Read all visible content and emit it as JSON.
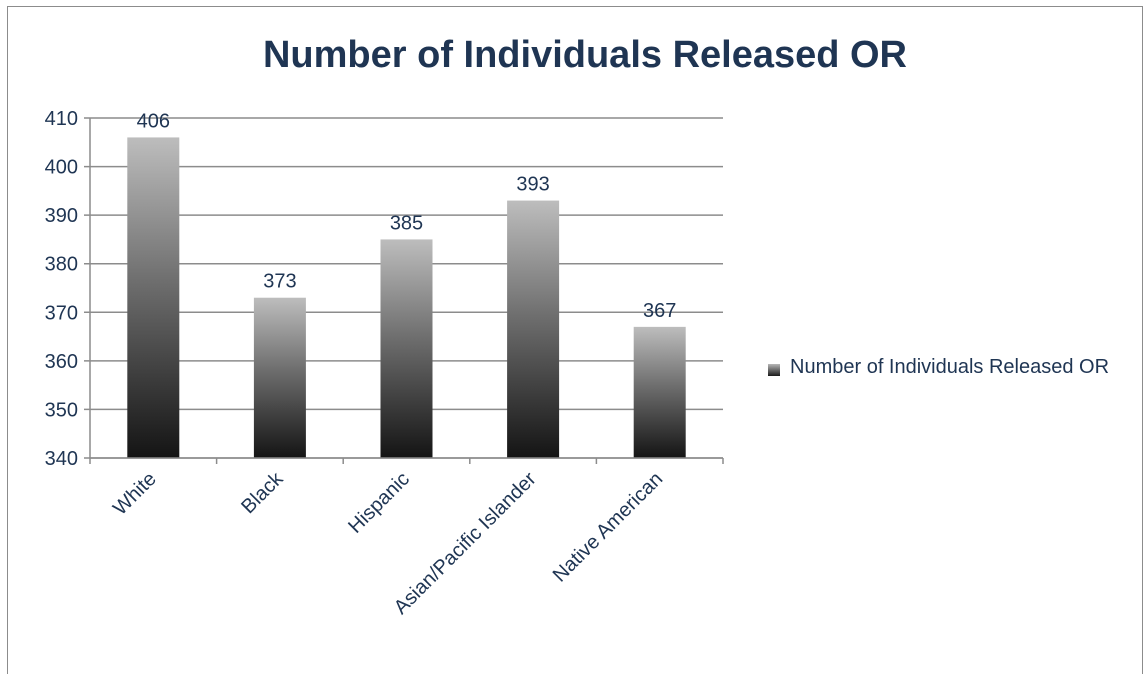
{
  "chart_data": {
    "type": "bar",
    "title": "Number of Individuals Released OR",
    "categories": [
      "White",
      "Black",
      "Hispanic",
      "Asian/Pacific Islander",
      "Native American"
    ],
    "series": [
      {
        "name": "Number of Individuals Released OR",
        "values": [
          406,
          373,
          385,
          393,
          367
        ]
      }
    ],
    "data_labels": [
      "406",
      "373",
      "385",
      "393",
      "367"
    ],
    "ylim": [
      340,
      410
    ],
    "yticks": [
      340,
      350,
      360,
      370,
      380,
      390,
      400,
      410
    ],
    "grid": true,
    "legend_position": "right",
    "colors": {
      "text": "#1f3553",
      "bar_top": "#bdbdbd",
      "bar_bottom": "#141414",
      "grid": "#8c8c8c"
    }
  }
}
